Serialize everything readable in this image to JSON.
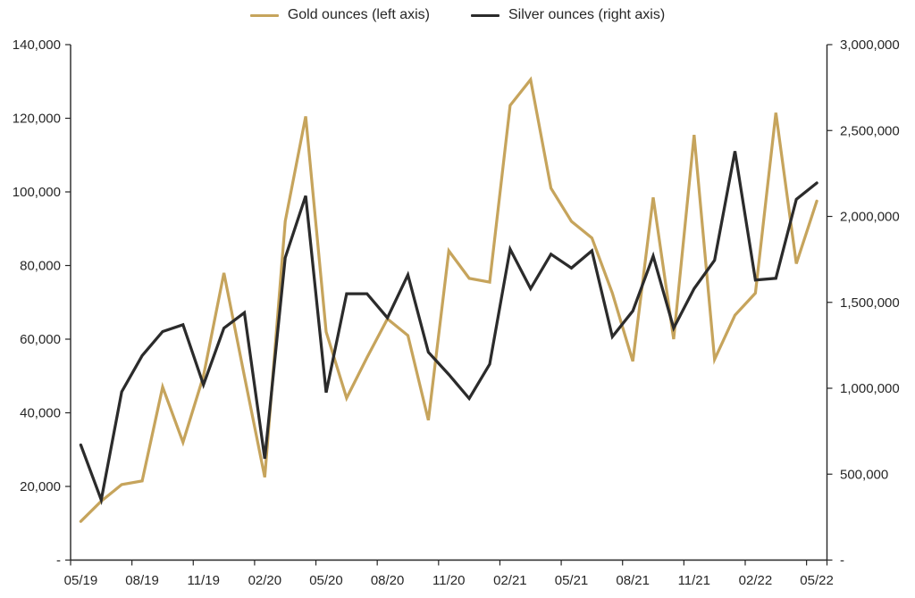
{
  "page": {
    "background": "#ffffff"
  },
  "legend": {
    "items": [
      {
        "label": "Gold ounces (left axis)",
        "color": "#C6A45C"
      },
      {
        "label": "Silver ounces (right axis)",
        "color": "#2B2B2B"
      }
    ]
  },
  "chart_data": {
    "type": "line",
    "title": "",
    "xlabel": "",
    "ylabel_left": "",
    "ylabel_right": "",
    "grid": false,
    "legend_position": "top-center",
    "x": [
      "05/19",
      "06/19",
      "07/19",
      "08/19",
      "09/19",
      "10/19",
      "11/19",
      "12/19",
      "01/20",
      "02/20",
      "03/20",
      "04/20",
      "05/20",
      "06/20",
      "07/20",
      "08/20",
      "09/20",
      "10/20",
      "11/20",
      "12/20",
      "01/21",
      "02/21",
      "03/21",
      "04/21",
      "05/21",
      "06/21",
      "07/21",
      "08/21",
      "09/21",
      "10/21",
      "11/21",
      "12/21",
      "01/22",
      "02/22",
      "03/22",
      "04/22",
      "05/22"
    ],
    "x_tick_labels": [
      "05/19",
      "08/19",
      "11/19",
      "02/20",
      "05/20",
      "08/20",
      "11/20",
      "02/21",
      "05/21",
      "08/21",
      "11/21",
      "02/22",
      "05/22"
    ],
    "series": [
      {
        "name": "Gold ounces (left axis)",
        "axis": "left",
        "color": "#C6A45C",
        "values": [
          10500,
          16000,
          20500,
          21500,
          47000,
          32000,
          50000,
          78000,
          50000,
          22500,
          92000,
          120500,
          62000,
          44000,
          55000,
          65500,
          61000,
          38000,
          84000,
          76500,
          75500,
          123500,
          130500,
          101000,
          92000,
          87500,
          72500,
          54000,
          98500,
          60000,
          115500,
          54500,
          66500,
          72500,
          121500,
          80500,
          97500
        ]
      },
      {
        "name": "Silver ounces (right axis)",
        "axis": "right",
        "color": "#2B2B2B",
        "values": [
          670000,
          350000,
          980000,
          1190000,
          1330000,
          1370000,
          1020000,
          1350000,
          1440000,
          590000,
          1760000,
          2120000,
          975000,
          1550000,
          1550000,
          1410000,
          1660000,
          1210000,
          1080000,
          940000,
          1140000,
          1810000,
          1580000,
          1780000,
          1700000,
          1800000,
          1300000,
          1450000,
          1770000,
          1350000,
          1580000,
          1745000,
          2380000,
          1630000,
          1640000,
          2100000,
          2195000
        ]
      }
    ],
    "left_axis": {
      "min": 0,
      "max": 140000,
      "step": 20000,
      "tick_labels": [
        "-",
        "20,000",
        "40,000",
        "60,000",
        "80,000",
        "100,000",
        "120,000",
        "140,000"
      ]
    },
    "right_axis": {
      "min": 0,
      "max": 3000000,
      "step": 500000,
      "tick_labels": [
        "-",
        "500,000",
        "1,000,000",
        "1,500,000",
        "2,000,000",
        "2,500,000",
        "3,000,000"
      ]
    },
    "axis_color": "#262626",
    "label_color": "#262626"
  }
}
